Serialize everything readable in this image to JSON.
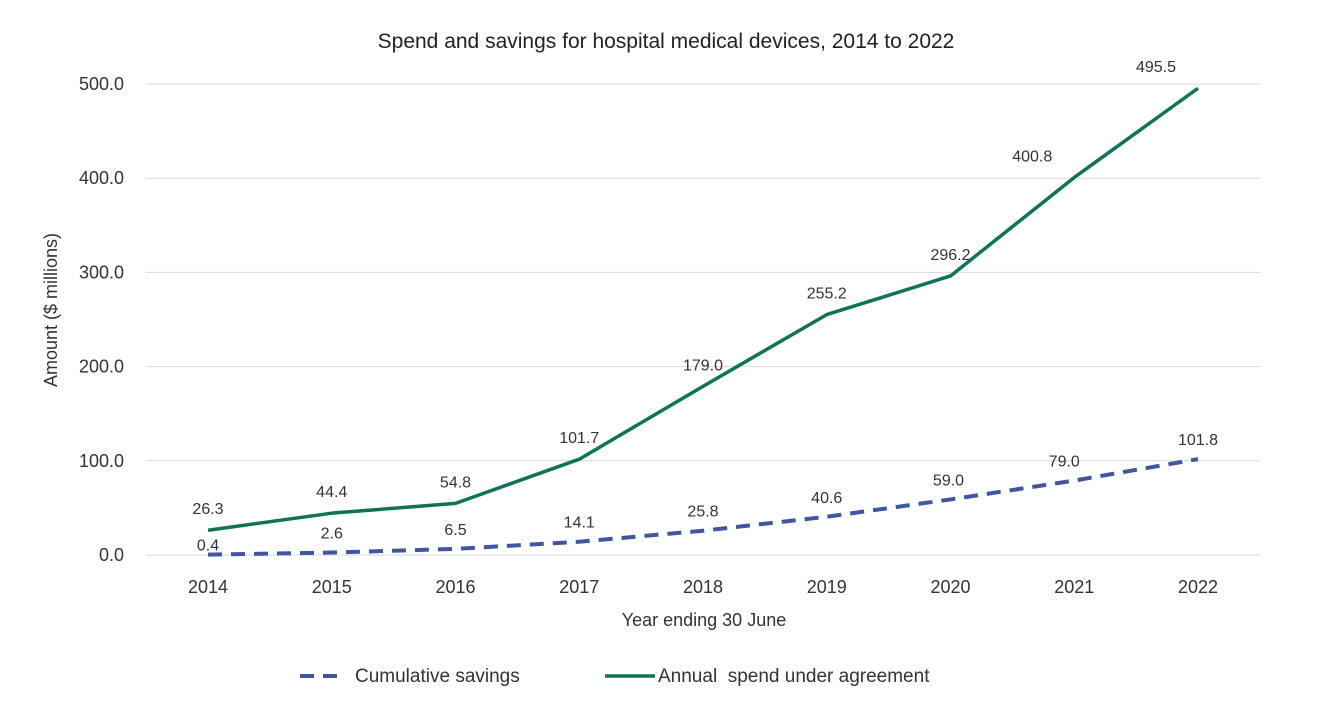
{
  "chart_data": {
    "type": "line",
    "title": "Spend and savings for hospital medical devices, 2014 to 2022",
    "xlabel": "Year ending 30 June",
    "ylabel": "Amount ($ millions)",
    "categories": [
      "2014",
      "2015",
      "2016",
      "2017",
      "2018",
      "2019",
      "2020",
      "2021",
      "2022"
    ],
    "ylim": [
      0,
      500
    ],
    "yticks": [
      "0.0",
      "100.0",
      "200.0",
      "300.0",
      "400.0",
      "500.0"
    ],
    "grid": true,
    "legend_position": "bottom",
    "series": [
      {
        "name": "Cumulative savings",
        "style": "dashed",
        "color": "#3f55a6",
        "values": [
          0.4,
          2.6,
          6.5,
          14.1,
          25.8,
          40.6,
          59.0,
          79.0,
          101.8
        ],
        "labels": [
          "0.4",
          "2.6",
          "6.5",
          "14.1",
          "25.8",
          "40.6",
          "59.0",
          "79.0",
          "101.8"
        ]
      },
      {
        "name": "Annual  spend under agreement",
        "style": "solid",
        "color": "#0f7358",
        "values": [
          26.3,
          44.4,
          54.8,
          101.7,
          179.0,
          255.2,
          296.2,
          400.8,
          495.5
        ],
        "labels": [
          "26.3",
          "44.4",
          "54.8",
          "101.7",
          "179.0",
          "255.2",
          "296.2",
          "400.8",
          "495.5"
        ]
      }
    ]
  }
}
